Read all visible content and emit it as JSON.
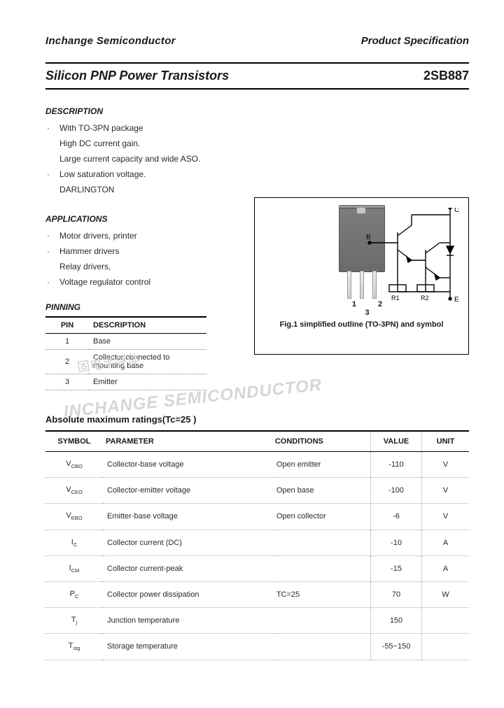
{
  "header": {
    "brand": "Inchange Semiconductor",
    "spec": "Product Specification"
  },
  "title": {
    "left": "Silicon PNP Power Transistors",
    "right": "2SB887"
  },
  "desc_heading": "DESCRIPTION",
  "desc_items": [
    "With TO-3PN package",
    "High DC current gain.",
    "Large current capacity and wide ASO.",
    "Low saturation voltage.",
    "DARLINGTON"
  ],
  "apps_heading": "APPLICATIONS",
  "apps_items": [
    "Motor drivers, printer",
    "Hammer drivers",
    "Relay drivers,",
    "Voltage regulator control"
  ],
  "pinning_heading": "PINNING",
  "pin_table": {
    "head": {
      "pin": "PIN",
      "desc": "DESCRIPTION"
    },
    "rows": [
      {
        "pin": "1",
        "desc": "Base"
      },
      {
        "pin": "2",
        "desc": "Collector;connected to mounting base"
      },
      {
        "pin": "3",
        "desc": "Emitter"
      }
    ]
  },
  "figure": {
    "pin_labels": "1 2 3",
    "terminals": {
      "b": "B",
      "c": "C",
      "e": "E",
      "r1": "R1",
      "r2": "R2"
    },
    "caption": "Fig.1 simplified outline (TO-3PN) and symbol"
  },
  "watermark_cn": "固电半导体",
  "watermark_en": "INCHANGE SEMICONDUCTOR",
  "abs_heading": "Absolute maximum ratings(Tc=25 )",
  "ratings": {
    "head": {
      "sym": "SYMBOL",
      "par": "PARAMETER",
      "cond": "CONDITIONS",
      "val": "VALUE",
      "unit": "UNIT"
    },
    "rows": [
      {
        "sym": "V",
        "sub": "CBO",
        "par": "Collector-base voltage",
        "cond": "Open emitter",
        "val": "-110",
        "unit": "V"
      },
      {
        "sym": "V",
        "sub": "CEO",
        "par": "Collector-emitter voltage",
        "cond": "Open base",
        "val": "-100",
        "unit": "V"
      },
      {
        "sym": "V",
        "sub": "EBO",
        "par": "Emitter-base voltage",
        "cond": "Open collector",
        "val": "-6",
        "unit": "V"
      },
      {
        "sym": "I",
        "sub": "C",
        "par": "Collector current (DC)",
        "cond": "",
        "val": "-10",
        "unit": "A"
      },
      {
        "sym": "I",
        "sub": "CM",
        "par": "Collector current-peak",
        "cond": "",
        "val": "-15",
        "unit": "A"
      },
      {
        "sym": "P",
        "sub": "C",
        "par": "Collector power dissipation",
        "cond": "TC=25",
        "val": "70",
        "unit": "W"
      },
      {
        "sym": "T",
        "sub": "j",
        "par": "Junction temperature",
        "cond": "",
        "val": "150",
        "unit": ""
      },
      {
        "sym": "T",
        "sub": "stg",
        "par": "Storage temperature",
        "cond": "",
        "val": "-55~150",
        "unit": ""
      }
    ]
  }
}
